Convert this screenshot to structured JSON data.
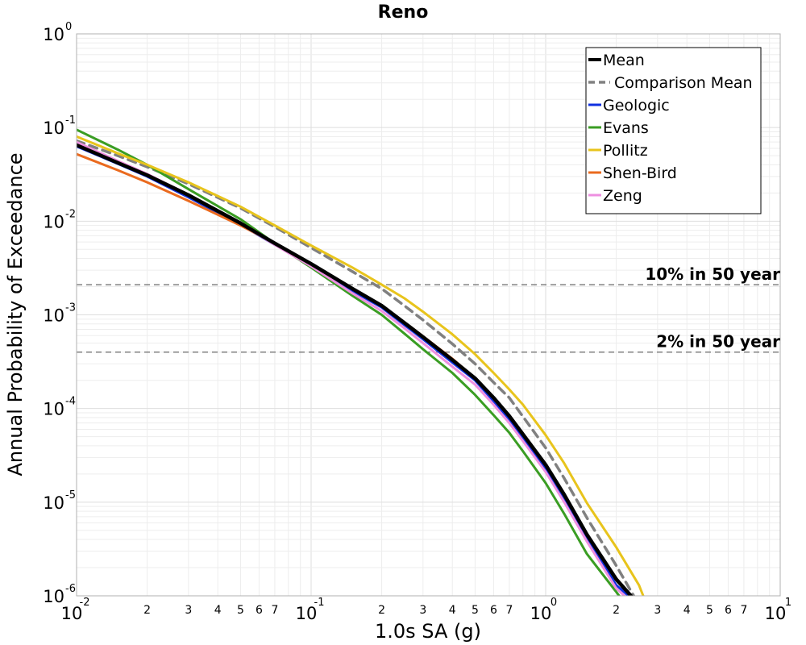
{
  "chart_data": {
    "type": "line",
    "title": "Reno",
    "xlabel": "1.0s SA (g)",
    "ylabel": "Annual Probability of Exceedance",
    "x_scale": "log",
    "y_scale": "log",
    "xlim": [
      0.01,
      10
    ],
    "ylim": [
      1e-06,
      1
    ],
    "grid": true,
    "legend_position": "top-right",
    "x_major_ticks": [
      {
        "value": 0.01,
        "base": "10",
        "exp": "-2"
      },
      {
        "value": 0.1,
        "base": "10",
        "exp": "-1"
      },
      {
        "value": 1,
        "base": "10",
        "exp": "0"
      },
      {
        "value": 10,
        "base": "10",
        "exp": "1"
      }
    ],
    "x_minor_labels": [
      "2",
      "3",
      "4",
      "5",
      "6",
      "7"
    ],
    "y_major_ticks": [
      {
        "value": 1,
        "base": "10",
        "exp": "0"
      },
      {
        "value": 0.1,
        "base": "10",
        "exp": "-1"
      },
      {
        "value": 0.01,
        "base": "10",
        "exp": "-2"
      },
      {
        "value": 0.001,
        "base": "10",
        "exp": "-3"
      },
      {
        "value": 0.0001,
        "base": "10",
        "exp": "-4"
      },
      {
        "value": 1e-05,
        "base": "10",
        "exp": "-5"
      },
      {
        "value": 1e-06,
        "base": "10",
        "exp": "-6"
      }
    ],
    "reference_lines": [
      {
        "label": "10% in 50 year",
        "y": 0.0021,
        "color": "#808080"
      },
      {
        "label": "2% in 50 year",
        "y": 0.0004,
        "color": "#808080"
      }
    ],
    "series": [
      {
        "name": "Mean",
        "color": "#000000",
        "dash": false,
        "width": 4.5,
        "x": [
          0.01,
          0.015,
          0.02,
          0.03,
          0.05,
          0.07,
          0.1,
          0.15,
          0.2,
          0.25,
          0.3,
          0.4,
          0.5,
          0.6,
          0.7,
          0.8,
          1.0,
          1.2,
          1.5,
          2.0,
          2.5
        ],
        "y": [
          0.065,
          0.042,
          0.031,
          0.019,
          0.0095,
          0.0058,
          0.0035,
          0.0019,
          0.00125,
          0.00082,
          0.00058,
          0.00033,
          0.00021,
          0.00013,
          8.3e-05,
          5.3e-05,
          2.5e-05,
          1.2e-05,
          4.5e-06,
          1.5e-06,
          8e-07
        ]
      },
      {
        "name": "Comparison Mean",
        "color": "#808080",
        "dash": true,
        "width": 3.5,
        "x": [
          0.01,
          0.015,
          0.02,
          0.03,
          0.05,
          0.07,
          0.1,
          0.15,
          0.2,
          0.25,
          0.3,
          0.4,
          0.5,
          0.6,
          0.7,
          0.8,
          1.0,
          1.2,
          1.5,
          2.0,
          2.5
        ],
        "y": [
          0.072,
          0.05,
          0.038,
          0.025,
          0.0138,
          0.0087,
          0.0052,
          0.0029,
          0.0019,
          0.00125,
          0.00088,
          0.00049,
          0.0003,
          0.00019,
          0.00013,
          8.2e-05,
          3.8e-05,
          1.8e-05,
          6.8e-06,
          2.1e-06,
          8e-07
        ]
      },
      {
        "name": "Geologic",
        "color": "#1030e0",
        "dash": false,
        "width": 3,
        "x": [
          0.01,
          0.015,
          0.02,
          0.03,
          0.05,
          0.07,
          0.1,
          0.15,
          0.2,
          0.25,
          0.3,
          0.4,
          0.5,
          0.6,
          0.7,
          0.8,
          1.0,
          1.2,
          1.5,
          2.0,
          2.5
        ],
        "y": [
          0.063,
          0.041,
          0.03,
          0.018,
          0.0092,
          0.0056,
          0.0034,
          0.0018,
          0.0012,
          0.00078,
          0.00055,
          0.00031,
          0.0002,
          0.00012,
          7.7e-05,
          4.9e-05,
          2.3e-05,
          1.1e-05,
          4.1e-06,
          1.3e-06,
          8e-07
        ]
      },
      {
        "name": "Evans",
        "color": "#3a9d23",
        "dash": false,
        "width": 3,
        "x": [
          0.01,
          0.015,
          0.02,
          0.03,
          0.05,
          0.07,
          0.1,
          0.15,
          0.2,
          0.25,
          0.3,
          0.4,
          0.5,
          0.6,
          0.7,
          0.8,
          1.0,
          1.2,
          1.5,
          2.0,
          2.2
        ],
        "y": [
          0.095,
          0.058,
          0.04,
          0.022,
          0.0105,
          0.0058,
          0.0032,
          0.0016,
          0.001,
          0.00063,
          0.00043,
          0.00024,
          0.00014,
          8.5e-05,
          5.5e-05,
          3.5e-05,
          1.6e-05,
          7.5e-06,
          2.8e-06,
          1.1e-06,
          8e-07
        ]
      },
      {
        "name": "Pollitz",
        "color": "#e8c41c",
        "dash": false,
        "width": 3,
        "x": [
          0.01,
          0.015,
          0.02,
          0.03,
          0.05,
          0.07,
          0.1,
          0.15,
          0.2,
          0.25,
          0.3,
          0.4,
          0.5,
          0.6,
          0.7,
          0.8,
          1.0,
          1.2,
          1.5,
          2.0,
          2.5,
          2.7
        ],
        "y": [
          0.08,
          0.053,
          0.04,
          0.026,
          0.0143,
          0.009,
          0.0055,
          0.0032,
          0.0021,
          0.0015,
          0.00108,
          0.00062,
          0.00038,
          0.00024,
          0.00016,
          0.00011,
          5.2e-05,
          2.6e-05,
          9.8e-06,
          3.3e-06,
          1.3e-06,
          8e-07
        ]
      },
      {
        "name": "Shen-Bird",
        "color": "#ea6a1e",
        "dash": false,
        "width": 3,
        "x": [
          0.01,
          0.015,
          0.02,
          0.03,
          0.05,
          0.07,
          0.1,
          0.15,
          0.2,
          0.25,
          0.3,
          0.4,
          0.5,
          0.6,
          0.7,
          0.8,
          1.0,
          1.2,
          1.5,
          2.0,
          2.5
        ],
        "y": [
          0.052,
          0.035,
          0.026,
          0.0165,
          0.009,
          0.0058,
          0.0035,
          0.0019,
          0.00125,
          0.00083,
          0.00059,
          0.00034,
          0.00021,
          0.00013,
          8.4e-05,
          5.3e-05,
          2.5e-05,
          1.2e-05,
          4.5e-06,
          1.5e-06,
          8e-07
        ]
      },
      {
        "name": "Zeng",
        "color": "#ee8fe0",
        "dash": false,
        "width": 3,
        "x": [
          0.01,
          0.015,
          0.02,
          0.03,
          0.05,
          0.07,
          0.1,
          0.15,
          0.2,
          0.25,
          0.3,
          0.4,
          0.5,
          0.6,
          0.7,
          0.8,
          1.0,
          1.2,
          1.5,
          2.0,
          2.4
        ],
        "y": [
          0.07,
          0.044,
          0.032,
          0.019,
          0.0094,
          0.0056,
          0.0033,
          0.0017,
          0.0011,
          0.00072,
          0.0005,
          0.00028,
          0.00018,
          0.00011,
          7e-05,
          4.5e-05,
          2.1e-05,
          1e-05,
          3.8e-06,
          1.2e-06,
          8e-07
        ]
      }
    ]
  }
}
